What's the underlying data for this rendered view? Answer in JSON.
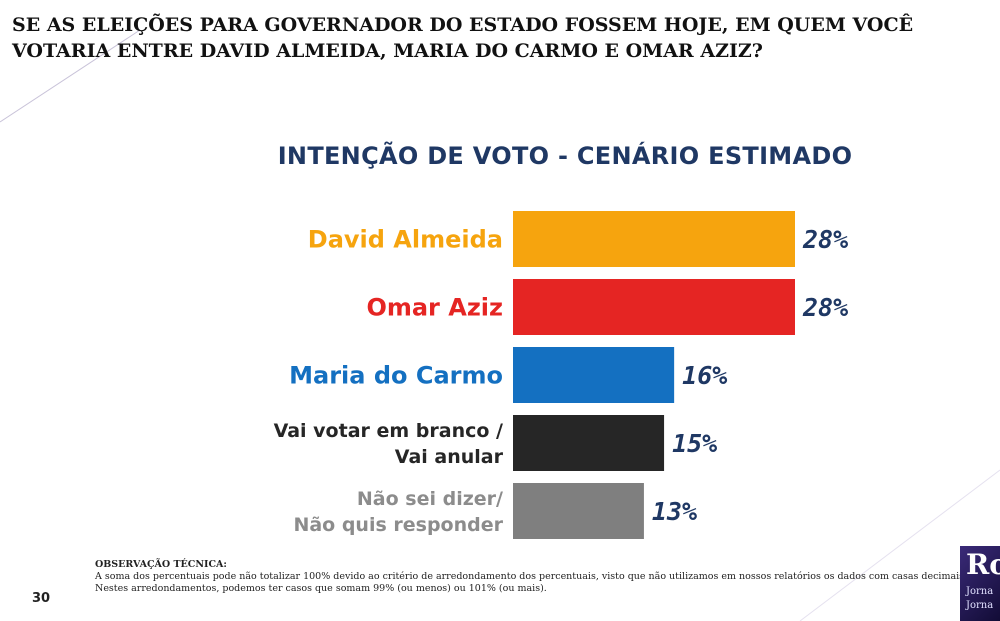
{
  "question": "SE AS ELEIÇÕES PARA GOVERNADOR DO ESTADO FOSSEM HOJE, EM QUEM VOCÊ VOTARIA ENTRE DAVID ALMEIDA, MARIA DO CARMO E OMAR AZIZ?",
  "colors": {
    "title": "#1f3864",
    "david": "#f6a40e",
    "omar": "#e52523",
    "maria": "#1470c1",
    "branco": "#262626",
    "naosei": "#7f7f7f",
    "value_text": "#1f3864"
  },
  "chart_data": {
    "type": "bar",
    "orientation": "horizontal",
    "title": "INTENÇÃO DE VOTO - CENÁRIO ESTIMADO",
    "categories": [
      [
        "David Almeida"
      ],
      [
        "Omar Aziz"
      ],
      [
        "Maria do Carmo"
      ],
      [
        "Vai votar em branco /",
        "Vai anular"
      ],
      [
        "Não sei dizer/",
        "Não quis responder"
      ]
    ],
    "values": [
      28,
      28,
      16,
      15,
      13
    ],
    "value_labels": [
      "28%",
      "28%",
      "16%",
      "15%",
      "13%"
    ],
    "bar_colors": [
      "#f6a40e",
      "#e52523",
      "#1470c1",
      "#262626",
      "#7f7f7f"
    ],
    "label_colors": [
      "#f6a40e",
      "#e52523",
      "#1470c1",
      "#262626",
      "#8c8c8c"
    ],
    "xlim": [
      0,
      28
    ],
    "grid": false,
    "legend": "none"
  },
  "footnote": {
    "heading": "OBSERVAÇÃO TÉCNICA:",
    "line1": "A soma dos percentuais pode não totalizar 100% devido ao critério de arredondamento dos percentuais, visto que não utilizamos em nossos relatórios os dados com casas decimais.",
    "line2": "Nestes arredondamentos, podemos ter casos que somam 99% (ou menos) ou 101% (ou mais)."
  },
  "page_number": "30",
  "logo": {
    "main": "Ro",
    "sub1": "Jorna",
    "sub2": "Jorna"
  }
}
